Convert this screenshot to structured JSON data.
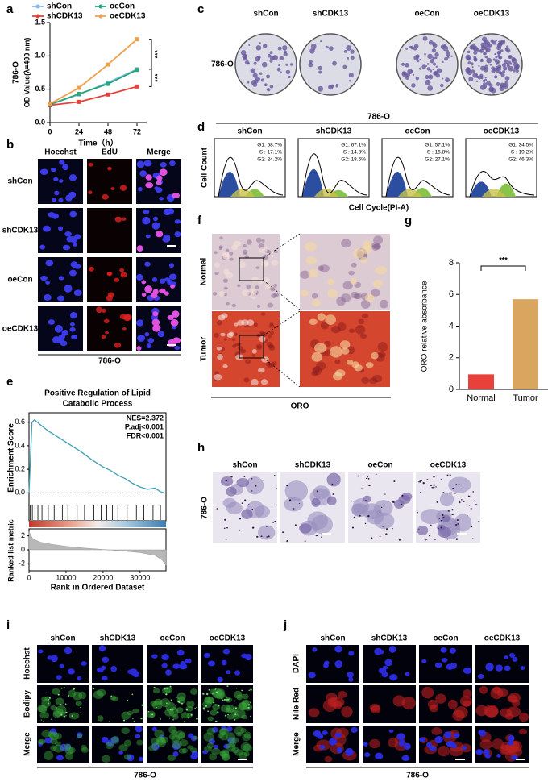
{
  "panel_labels": [
    "a",
    "b",
    "c",
    "d",
    "e",
    "f",
    "g",
    "h",
    "i",
    "j"
  ],
  "chart_data": [
    {
      "type": "line",
      "y_label_lines": [
        "786-O",
        "OD Value(λ=490 nm)"
      ],
      "x_label": "Time（h）",
      "x": [
        0,
        24,
        48,
        72
      ],
      "xlim": [
        0,
        80
      ],
      "xticks": [
        0,
        24,
        48,
        72
      ],
      "ylim": [
        0,
        1.5
      ],
      "yticks": [
        {
          "value": 0,
          "label": "0.0"
        },
        0.5,
        {
          "value": 1,
          "label": "1.0"
        },
        1.5
      ],
      "series": [
        {
          "name": "shCon",
          "color": "#86b9e8",
          "values": [
            0.27,
            0.42,
            0.6,
            0.8
          ]
        },
        {
          "name": "shCDK13",
          "color": "#e8413c",
          "values": [
            0.26,
            0.31,
            0.42,
            0.54
          ]
        },
        {
          "name": "oeCon",
          "color": "#27a77a",
          "values": [
            0.27,
            0.43,
            0.58,
            0.79
          ]
        },
        {
          "name": "oeCDK13",
          "color": "#f0a04b",
          "values": [
            0.28,
            0.52,
            0.87,
            1.25
          ]
        }
      ],
      "annotations": [
        "***",
        "***"
      ]
    },
    {
      "type": "enrichment",
      "title_lines": [
        "Positive Regulation of Lipid",
        "Catabolic Process"
      ],
      "y_label": "Enrichment Score",
      "x_label": "Rank in Ordered Dataset",
      "annotations": [
        "NES=2.372",
        "P.adj<0.001",
        "FDR<0.001"
      ],
      "color": "#3fa0b5",
      "x": [
        0,
        800,
        1500,
        3000,
        5000,
        8000,
        11000,
        14000,
        17000,
        20000,
        22000,
        24000,
        26000,
        28000,
        30000,
        32000,
        34000,
        35500,
        36500
      ],
      "values": [
        0,
        0.6,
        0.62,
        0.58,
        0.53,
        0.47,
        0.41,
        0.35,
        0.28,
        0.22,
        0.19,
        0.15,
        0.12,
        0.08,
        0.05,
        0.03,
        0.04,
        0.01,
        0
      ],
      "xlim": [
        0,
        37000
      ],
      "xticks": [
        0,
        10000,
        20000,
        30000
      ],
      "ylim": [
        -0.08,
        0.68
      ],
      "yticks": [
        {
          "value": 0,
          "label": "0.0"
        },
        0.2,
        0.4,
        0.6
      ],
      "hits": [
        300,
        900,
        1600,
        2400,
        3500,
        5200,
        6800,
        9000,
        10500,
        13000,
        15000,
        17500,
        19500,
        21000,
        22500,
        24000,
        26500,
        29000,
        31000,
        33500,
        35500
      ],
      "metric": {
        "y_label": "Ranked list metric",
        "x": [
          0,
          1000,
          3000,
          6000,
          10000,
          15000,
          20000,
          25000,
          30000,
          34000,
          36000,
          37000
        ],
        "values": [
          2.6,
          1.6,
          1.1,
          0.8,
          0.5,
          0.25,
          0.05,
          -0.15,
          -0.4,
          -0.8,
          -1.5,
          -2.2
        ],
        "ylim": [
          -3,
          3
        ],
        "yticks": [
          -2,
          0,
          2
        ]
      }
    },
    {
      "type": "bar",
      "y_label": "ORO relative absorbance",
      "categories": [
        "Normal",
        "Tumor"
      ],
      "values": [
        0.95,
        5.7
      ],
      "colors": [
        "#e8413c",
        "#d9a55f"
      ],
      "ylim": [
        0,
        8
      ],
      "yticks": [
        0,
        2,
        4,
        6,
        8
      ],
      "annotations": [
        "***"
      ]
    }
  ],
  "colony": {
    "columns": [
      "shCon",
      "shCDK13",
      "oeCon",
      "oeCDK13"
    ],
    "row_label": "786-O"
  },
  "flow": {
    "title": "786-O",
    "y_label": "Cell Count",
    "x_label": "Cell Cycle(PI-A)",
    "panels": [
      {
        "name": "shCon",
        "stats": [
          "G1: 58.7%",
          "S : 17.1%",
          "G2: 24.2%"
        ]
      },
      {
        "name": "shCDK13",
        "stats": [
          "G1: 67.1%",
          "S : 14.3%",
          "G2: 18.6%"
        ]
      },
      {
        "name": "oeCon",
        "stats": [
          "G1: 57.1%",
          "S : 15.8%",
          "G2: 27.1%"
        ]
      },
      {
        "name": "oeCDK13",
        "stats": [
          "G1: 34.5%",
          "S : 19.2%",
          "G2: 46.3%"
        ]
      }
    ]
  },
  "edu": {
    "columns": [
      "Hoechst",
      "EdU",
      "Merge"
    ],
    "rows": [
      "shCon",
      "shCDK13",
      "oeCon",
      "oeCDK13"
    ],
    "footer": "786-O"
  },
  "oro_tissue": {
    "rows": [
      "Normal",
      "Tumor"
    ],
    "footer": "ORO"
  },
  "oro_cells": {
    "columns": [
      "shCon",
      "shCDK13",
      "oeCon",
      "oeCDK13"
    ],
    "row_label": "786-O"
  },
  "bodipy": {
    "columns": [
      "shCon",
      "shCDK13",
      "oeCon",
      "oeCDK13"
    ],
    "rows": [
      "Hoechst",
      "Bodipy",
      "Merge"
    ],
    "footer": "786-O"
  },
  "nile_red": {
    "columns": [
      "shCon",
      "shCDK13",
      "oeCon",
      "oeCDK13"
    ],
    "rows": [
      "DAPI",
      "Nile Red",
      "Merge"
    ],
    "footer": "786-O"
  }
}
